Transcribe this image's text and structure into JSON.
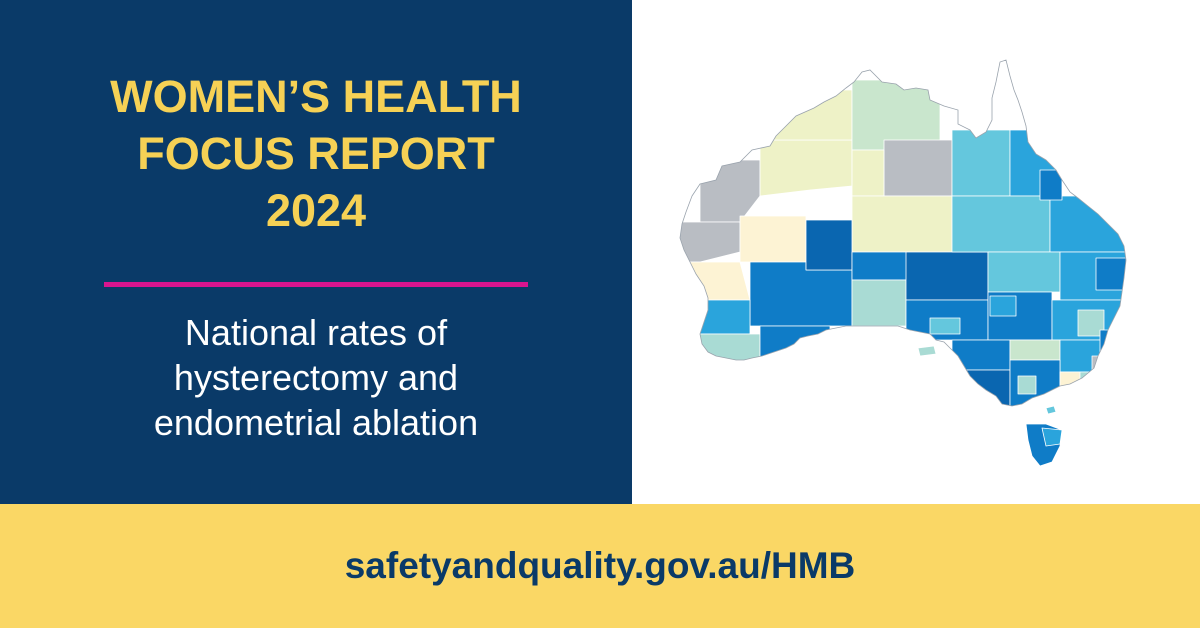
{
  "banner": {
    "title_lines": [
      "WOMEN’S HEALTH",
      "FOCUS REPORT",
      "2024"
    ],
    "subtitle_lines": [
      "National rates of",
      "hysterectomy and",
      "endometrial ablation"
    ],
    "url": "safetyandquality.gov.au/HMB"
  },
  "colors": {
    "navy": "#0a3a68",
    "gold_text": "#f6d155",
    "footer_yellow": "#fad765",
    "divider_magenta": "#d8158f",
    "white": "#ffffff"
  },
  "map": {
    "subject": "Australia",
    "palette": {
      "no_data": "#b9bdc3",
      "very_low": "#fdf3d4",
      "low": "#eef2c7",
      "low_mid": "#c9e6cd",
      "mid": "#a9dbd4",
      "mid_high": "#64c7dd",
      "high": "#2aa4dc",
      "very_high": "#0f7cc7",
      "highest": "#0a66b0"
    }
  }
}
